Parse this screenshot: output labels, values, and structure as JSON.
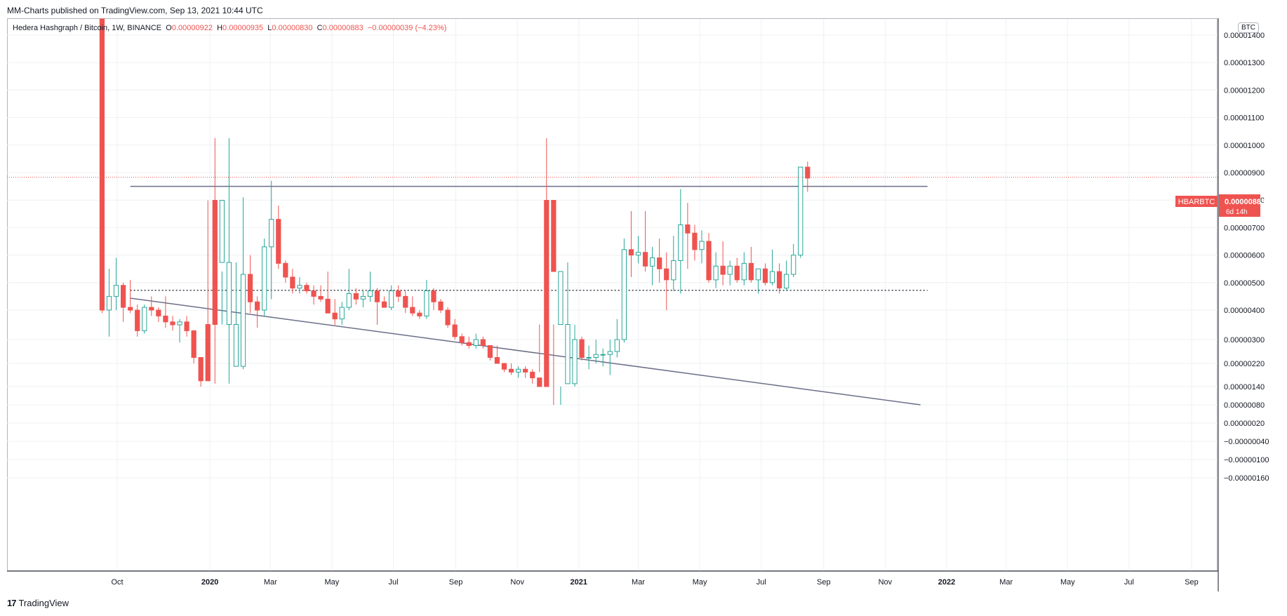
{
  "header": {
    "published": "MM-Charts published on TradingView.com, Sep 13, 2021 10:44 UTC"
  },
  "legend": {
    "symbol": "Hedera Hashgraph / Bitcoin, 1W, BINANCE",
    "o_label": "O",
    "o_value": "0.00000922",
    "h_label": "H",
    "h_value": "0.00000935",
    "l_label": "L",
    "l_value": "0.00000830",
    "c_label": "C",
    "c_value": "0.00000883",
    "change": "−0.00000039 (−4.23%)"
  },
  "currency_badge": "BTC",
  "price_tag": {
    "symbol": "HBARBTC",
    "price": "0.00000883",
    "countdown": "6d 14h"
  },
  "footer": {
    "logo": "17",
    "brand": "TradingView"
  },
  "colors": {
    "up": "#26a69a",
    "down": "#ef5350",
    "line": "#6b6f88",
    "grid": "#eef0f3"
  },
  "chart_data": {
    "type": "candlestick",
    "y_ticks": [
      "0.00001400",
      "0.00001300",
      "0.00001200",
      "0.00001100",
      "0.00001000",
      "0.00000900",
      "0.00000800",
      "0.00000700",
      "0.00000600",
      "0.00000500",
      "0.00000400",
      "0.00000300",
      "0.00000220",
      "0.00000140",
      "0.00000080",
      "0.00000020",
      "−0.00000040",
      "−0.00000100",
      "−0.00000160"
    ],
    "x_ticks": [
      {
        "label": "Oct",
        "date": "2019-10-01",
        "bold": false
      },
      {
        "label": "2020",
        "date": "2020-01-01",
        "bold": true
      },
      {
        "label": "Mar",
        "date": "2020-03-01",
        "bold": false
      },
      {
        "label": "May",
        "date": "2020-05-01",
        "bold": false
      },
      {
        "label": "Jul",
        "date": "2020-07-01",
        "bold": false
      },
      {
        "label": "Sep",
        "date": "2020-09-01",
        "bold": false
      },
      {
        "label": "Nov",
        "date": "2020-11-01",
        "bold": false
      },
      {
        "label": "2021",
        "date": "2021-01-01",
        "bold": true
      },
      {
        "label": "Mar",
        "date": "2021-03-01",
        "bold": false
      },
      {
        "label": "May",
        "date": "2021-05-01",
        "bold": false
      },
      {
        "label": "Jul",
        "date": "2021-07-01",
        "bold": false
      },
      {
        "label": "Sep",
        "date": "2021-09-01",
        "bold": false
      },
      {
        "label": "Nov",
        "date": "2021-11-01",
        "bold": false
      },
      {
        "label": "2022",
        "date": "2022-01-01",
        "bold": true
      },
      {
        "label": "Mar",
        "date": "2022-03-01",
        "bold": false
      },
      {
        "label": "May",
        "date": "2022-05-01",
        "bold": false
      },
      {
        "label": "Jul",
        "date": "2022-07-01",
        "bold": false
      },
      {
        "label": "Sep",
        "date": "2022-09-01",
        "bold": false
      }
    ],
    "first_candle_date": "2019-09-16",
    "candle_interval_days": 7,
    "candles": [
      [
        3e-05,
        3e-05,
        3.9e-06,
        4e-06
      ],
      [
        4e-06,
        5.5e-06,
        3.1e-06,
        4.5e-06
      ],
      [
        4.5e-06,
        5.9e-06,
        4e-06,
        4.9e-06
      ],
      [
        4.9e-06,
        5e-06,
        3.6e-06,
        4.1e-06
      ],
      [
        4.1e-06,
        5.1e-06,
        3.9e-06,
        4e-06
      ],
      [
        4e-06,
        4.2e-06,
        3.1e-06,
        3.3e-06
      ],
      [
        3.3e-06,
        4.2e-06,
        3.2e-06,
        4.1e-06
      ],
      [
        4.1e-06,
        4.5e-06,
        3.8e-06,
        4e-06
      ],
      [
        4e-06,
        4.1e-06,
        3.6e-06,
        3.8e-06
      ],
      [
        3.8e-06,
        4.5e-06,
        3.4e-06,
        3.6e-06
      ],
      [
        3.6e-06,
        3.8e-06,
        3.3e-06,
        3.5e-06
      ],
      [
        3.5e-06,
        3.7e-06,
        2.9e-06,
        3.6e-06
      ],
      [
        3.6e-06,
        3.8e-06,
        3.1e-06,
        3.3e-06
      ],
      [
        3.3e-06,
        3.3e-06,
        2.2e-06,
        2.4e-06
      ],
      [
        2.4e-06,
        2.4e-06,
        1.4e-06,
        1.6e-06
      ],
      [
        1.6e-06,
        1.8e-06,
        1.1e-06,
        1.3e-06
      ],
      [
        1.3e-06,
        1.5e-06,
        1e-06,
        1.1e-06
      ],
      [
        1.1e-06,
        1.3e-06,
        9e-07,
        1.2e-06
      ],
      [
        1.2e-06,
        1.5e-06,
        1e-06,
        1.3e-06
      ],
      [
        1.3e-06,
        2.3e-06,
        1.2e-06,
        2.1e-06
      ],
      [
        2.1e-06,
        8.1e-06,
        2e-06,
        5.3e-06
      ],
      [
        5.3e-06,
        6e-06,
        3.9e-06,
        4.3e-06
      ],
      [
        4.3e-06,
        4.5e-06,
        3.4e-06,
        4e-06
      ],
      [
        4e-06,
        6.6e-06,
        3.8e-06,
        6.3e-06
      ],
      [
        6.3e-06,
        8.7e-06,
        4.4e-06,
        7.3e-06
      ],
      [
        7.3e-06,
        7.8e-06,
        5.5e-06,
        5.7e-06
      ],
      [
        5.7e-06,
        5.8e-06,
        5e-06,
        5.2e-06
      ],
      [
        5.2e-06,
        5.5e-06,
        4.6e-06,
        4.8e-06
      ],
      [
        4.8e-06,
        5.2e-06,
        4.6e-06,
        4.9e-06
      ],
      [
        4.9e-06,
        5e-06,
        4.6e-06,
        4.7e-06
      ],
      [
        4.7e-06,
        4.9e-06,
        4.2e-06,
        4.5e-06
      ],
      [
        4.5e-06,
        4.9e-06,
        4.3e-06,
        4.4e-06
      ],
      [
        4.4e-06,
        5.4e-06,
        4e-06,
        3.9e-06
      ],
      [
        3.9e-06,
        4.4e-06,
        3.5e-06,
        3.7e-06
      ],
      [
        3.7e-06,
        4.3e-06,
        3.5e-06,
        4.1e-06
      ],
      [
        4.1e-06,
        5.5e-06,
        4e-06,
        4.6e-06
      ],
      [
        4.6e-06,
        4.8e-06,
        4.2e-06,
        4.4e-06
      ],
      [
        4.4e-06,
        4.7e-06,
        4.1e-06,
        4.5e-06
      ],
      [
        4.5e-06,
        5.4e-06,
        4.3e-06,
        4.7e-06
      ],
      [
        4.7e-06,
        4.8e-06,
        3.5e-06,
        4.3e-06
      ],
      [
        4.3e-06,
        4.5e-06,
        4.1e-06,
        4.1e-06
      ],
      [
        4.1e-06,
        4.9e-06,
        4e-06,
        4.7e-06
      ],
      [
        4.7e-06,
        4.9e-06,
        4.3e-06,
        4.5e-06
      ],
      [
        4.5e-06,
        4.7e-06,
        3.9e-06,
        4.1e-06
      ],
      [
        4.1e-06,
        4.5e-06,
        3.8e-06,
        3.9e-06
      ],
      [
        3.9e-06,
        4e-06,
        3.7e-06,
        3.8e-06
      ],
      [
        3.8e-06,
        5.1e-06,
        3.7e-06,
        4.7e-06
      ],
      [
        4.7e-06,
        4.8e-06,
        4e-06,
        4.3e-06
      ],
      [
        4.3e-06,
        4.4e-06,
        3.9e-06,
        4e-06
      ],
      [
        4e-06,
        4.1e-06,
        3.4e-06,
        3.5e-06
      ],
      [
        3.5e-06,
        3.7e-06,
        3e-06,
        3.1e-06
      ],
      [
        3.1e-06,
        3.2e-06,
        2.8e-06,
        2.9e-06
      ],
      [
        2.9e-06,
        3.1e-06,
        2.7e-06,
        2.8e-06
      ],
      [
        2.8e-06,
        3.2e-06,
        2.7e-06,
        3e-06
      ],
      [
        3e-06,
        3.1e-06,
        2.7e-06,
        2.8e-06
      ],
      [
        2.8e-06,
        2.8e-06,
        2.3e-06,
        2.4e-06
      ],
      [
        2.4e-06,
        2.8e-06,
        2.2e-06,
        2.2e-06
      ],
      [
        2.2e-06,
        2.2e-06,
        1.9e-06,
        2e-06
      ],
      [
        2e-06,
        2.2e-06,
        1.8e-06,
        1.9e-06
      ],
      [
        1.9e-06,
        2.1e-06,
        1.7e-06,
        2e-06
      ],
      [
        2e-06,
        2.1e-06,
        1.7e-06,
        1.9e-06
      ],
      [
        1.9e-06,
        2e-06,
        1.5e-06,
        1.7e-06
      ],
      [
        1.7e-06,
        1.9e-06,
        1.3e-06,
        1.4e-06
      ],
      [
        1.4e-06,
        1.6e-06,
        1e-06,
        1.1e-06
      ],
      [
        1.1e-06,
        1.3e-06,
        8e-07,
        9e-07
      ],
      [
        9e-07,
        1.4e-06,
        8e-07,
        1.3e-06
      ],
      [
        1.3e-06,
        1.7e-06,
        1.2e-06,
        1.5e-06
      ],
      [
        1.5e-06,
        3.5e-06,
        1.4e-06,
        3e-06
      ],
      [
        3e-06,
        3.1e-06,
        2.3e-06,
        2.4e-06
      ],
      [
        2.4e-06,
        2.8e-06,
        2e-06,
        2.4e-06
      ],
      [
        2.4e-06,
        3e-06,
        2.2e-06,
        2.5e-06
      ],
      [
        2.5e-06,
        2.7e-06,
        2.1e-06,
        2.5e-06
      ],
      [
        2.5e-06,
        3e-06,
        1.8e-06,
        2.6e-06
      ],
      [
        2.6e-06,
        3.7e-06,
        2.4e-06,
        3e-06
      ],
      [
        3e-06,
        6.6e-06,
        2.9e-06,
        6.2e-06
      ],
      [
        6.2e-06,
        7.6e-06,
        5.2e-06,
        6e-06
      ],
      [
        6e-06,
        6.7e-06,
        5.7e-06,
        6.1e-06
      ],
      [
        6.1e-06,
        7.6e-06,
        5.4e-06,
        5.6e-06
      ],
      [
        5.6e-06,
        6.3e-06,
        4.9e-06,
        5.9e-06
      ],
      [
        5.9e-06,
        6.6e-06,
        5e-06,
        5.5e-06
      ],
      [
        5.5e-06,
        6.1e-06,
        4e-06,
        5.1e-06
      ],
      [
        5.1e-06,
        6.7e-06,
        4.7e-06,
        5.8e-06
      ],
      [
        5.8e-06,
        8.4e-06,
        4.6e-06,
        7.1e-06
      ],
      [
        7.1e-06,
        7.9e-06,
        5.5e-06,
        6.8e-06
      ],
      [
        6.8e-06,
        7.1e-06,
        5.8e-06,
        6.2e-06
      ],
      [
        6.2e-06,
        6.9e-06,
        5.7e-06,
        6.5e-06
      ],
      [
        6.5e-06,
        6.8e-06,
        5e-06,
        5.1e-06
      ],
      [
        5.1e-06,
        6.1e-06,
        4.8e-06,
        5.6e-06
      ],
      [
        5.6e-06,
        6.5e-06,
        4.9e-06,
        5.3e-06
      ],
      [
        5.3e-06,
        5.8e-06,
        4.9e-06,
        5.6e-06
      ],
      [
        5.6e-06,
        5.9e-06,
        5e-06,
        5.1e-06
      ],
      [
        5.1e-06,
        6.1e-06,
        4.9e-06,
        5.7e-06
      ],
      [
        5.7e-06,
        6.3e-06,
        5e-06,
        5.1e-06
      ],
      [
        5.1e-06,
        5.3e-06,
        4.6e-06,
        5.5e-06
      ],
      [
        5.5e-06,
        5.7e-06,
        4.9e-06,
        5e-06
      ],
      [
        5e-06,
        6.2e-06,
        4.9e-06,
        5.4e-06
      ],
      [
        5.4e-06,
        5.7e-06,
        4.6e-06,
        4.8e-06
      ],
      [
        4.8e-06,
        5.8e-06,
        4.7e-06,
        5.3e-06
      ],
      [
        5.3e-06,
        6.4e-06,
        5.2e-06,
        6e-06
      ],
      [
        6e-06,
        9.2e-06,
        5.9e-06,
        9.2e-06
      ],
      [
        9.2e-06,
        9.4e-06,
        8.3e-06,
        8.8e-06
      ]
    ],
    "resistance_level": 8.5e-06,
    "support_level_dotted": 4.72e-06,
    "bottom_line_start": 8.8e-07,
    "bottom_line_end": 8e-07,
    "line_start_date": "2019-10-14",
    "line_end_date": "2021-12-13",
    "last_price": 8.83e-06
  }
}
